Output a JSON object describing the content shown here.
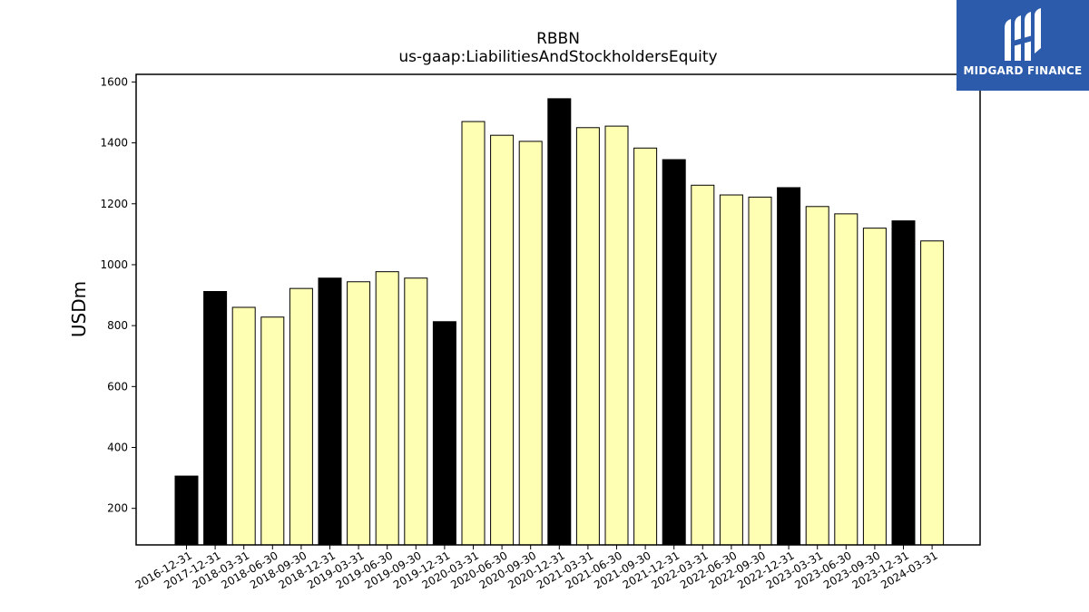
{
  "chart_data": {
    "type": "bar",
    "title": "RBBN",
    "subtitle": "us-gaap:LiabilitiesAndStockholdersEquity",
    "xlabel": "",
    "ylabel": "USDm",
    "ylim": [
      80,
      1625
    ],
    "yticks": [
      200,
      400,
      600,
      800,
      1000,
      1200,
      1400,
      1600
    ],
    "grid": false,
    "categories": [
      "2016-12-31",
      "2017-12-31",
      "2018-03-31",
      "2018-06-30",
      "2018-09-30",
      "2018-12-31",
      "2019-03-31",
      "2019-06-30",
      "2019-09-30",
      "2019-12-31",
      "2020-03-31",
      "2020-06-30",
      "2020-09-30",
      "2020-12-31",
      "2021-03-31",
      "2021-06-30",
      "2021-09-30",
      "2021-12-31",
      "2022-03-31",
      "2022-06-30",
      "2022-09-30",
      "2022-12-31",
      "2023-03-31",
      "2023-06-30",
      "2023-09-30",
      "2023-12-31",
      "2024-03-31"
    ],
    "values": [
      306,
      912,
      860,
      828,
      922,
      956,
      944,
      977,
      956,
      813,
      1470,
      1425,
      1405,
      1545,
      1450,
      1455,
      1383,
      1345,
      1261,
      1229,
      1222,
      1253,
      1191,
      1167,
      1120,
      1144,
      1078
    ],
    "annual": [
      true,
      true,
      false,
      false,
      false,
      true,
      false,
      false,
      false,
      true,
      false,
      false,
      false,
      true,
      false,
      false,
      false,
      true,
      false,
      false,
      false,
      true,
      false,
      false,
      false,
      true,
      false
    ],
    "colors": {
      "annual": "#000000",
      "quarterly": "#ffffb3",
      "edge": "#000000"
    }
  },
  "logo": {
    "text": "MIDGARD FINANCE",
    "background": "#2d5bab"
  }
}
